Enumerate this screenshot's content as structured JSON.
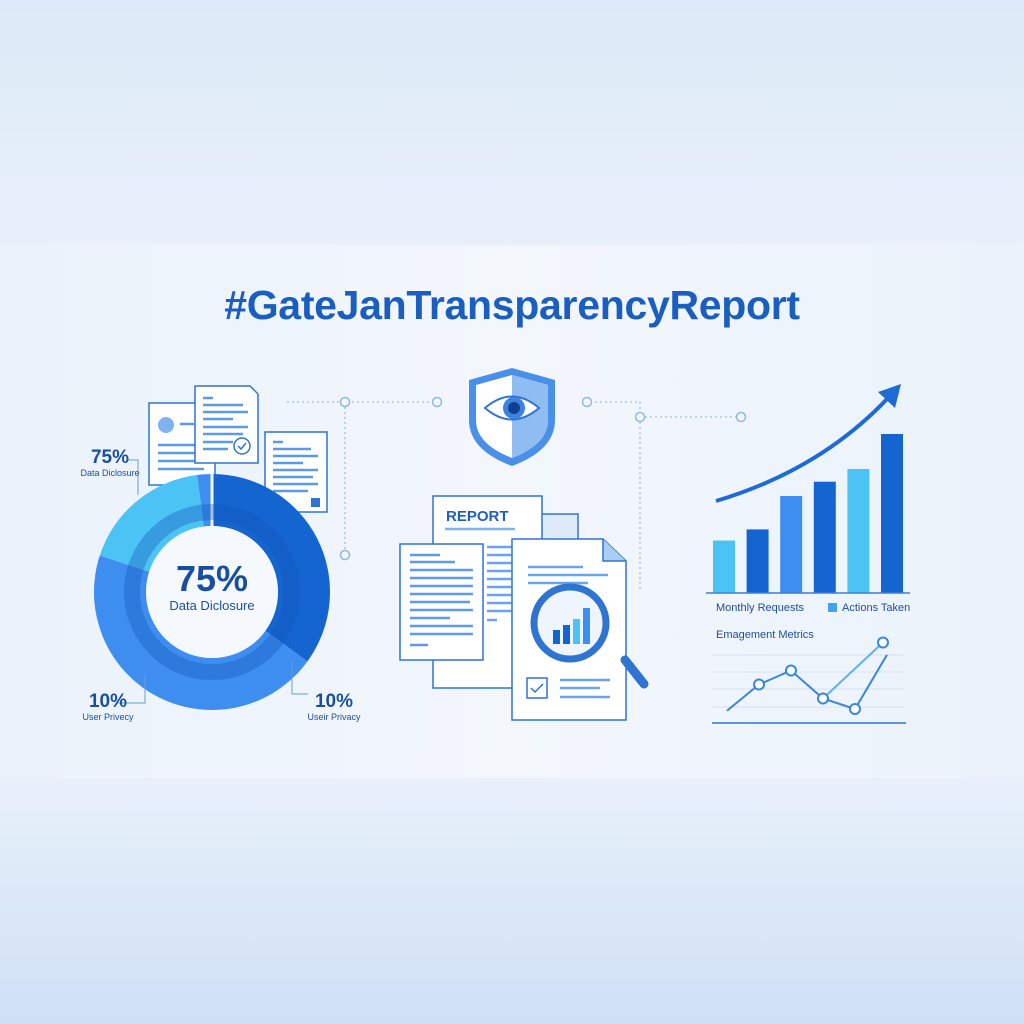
{
  "title": "#GateJanTransparencyReport",
  "colors": {
    "dark_blue": "#1565d0",
    "medium_blue": "#3d8ef0",
    "light_cyan": "#4cc3f5",
    "title": "#1a5fc0"
  },
  "donut": {
    "center_value": "75%",
    "center_label": "Data Diclosure",
    "segments": [
      {
        "color": "#1565d0",
        "share": 0.35
      },
      {
        "color": "#3d8ef0",
        "share": 0.45
      },
      {
        "color": "#4cc3f5",
        "share": 0.18
      },
      {
        "color": "#3d8ef0",
        "share": 0.02
      }
    ],
    "callouts": [
      {
        "value": "75%",
        "label": "Data Diclosure"
      },
      {
        "value": "10%",
        "label": "User Privecy"
      },
      {
        "value": "10%",
        "label": "Useir Privacy"
      }
    ]
  },
  "report": {
    "heading": "REPORT",
    "icons": [
      "shield-eye-icon",
      "magnifier-icon",
      "checkbox-icon"
    ]
  },
  "chart_data": [
    {
      "type": "bar",
      "values": [
        33,
        40,
        61,
        70,
        78,
        100
      ],
      "colors": [
        "#4cc3f5",
        "#1565d0",
        "#3d8ef0",
        "#1565d0",
        "#4cc3f5",
        "#1565d0"
      ],
      "legend": [
        "Monthly Requests",
        "Actions Taken"
      ],
      "trend_arrow": "up",
      "grid": false
    },
    {
      "type": "line",
      "title": "Emagement Metrics",
      "series": [
        {
          "values": [
            0.3,
            1.8,
            2.6,
            1.0,
            0.4,
            3.5
          ]
        },
        {
          "values": [
            1.0,
            4.2
          ]
        }
      ],
      "grid": true
    }
  ]
}
